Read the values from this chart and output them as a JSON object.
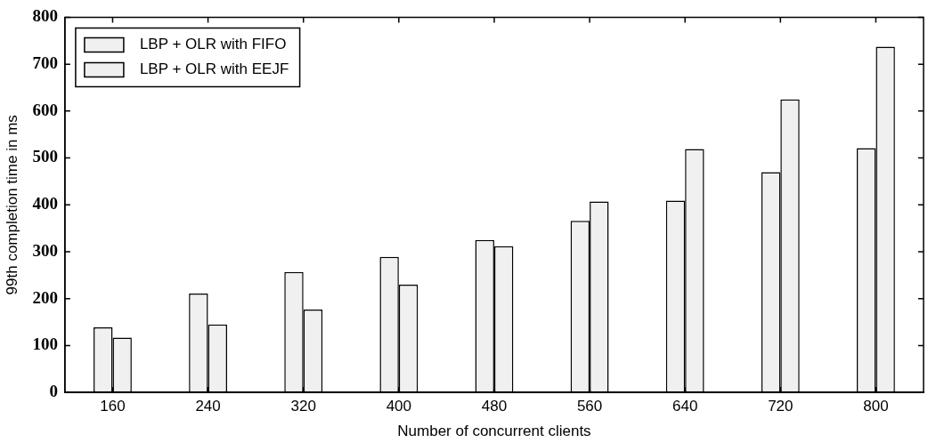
{
  "chart_data": {
    "type": "bar",
    "xlabel": "Number of concurrent clients",
    "ylabel": "99th completion time in ms",
    "categories": [
      "160",
      "240",
      "320",
      "400",
      "480",
      "560",
      "640",
      "720",
      "800"
    ],
    "series": [
      {
        "name": "LBP + OLR with FIFO",
        "color": "#f0f0f0",
        "values": [
          139,
          211,
          257,
          289,
          325,
          366,
          409,
          470,
          521
        ]
      },
      {
        "name": "LBP + OLR with EEJF",
        "color": "#f0f0f0",
        "values": [
          117,
          145,
          177,
          230,
          312,
          407,
          519,
          625,
          737
        ]
      }
    ],
    "ylim": [
      0,
      800
    ],
    "yticks": [
      0,
      100,
      200,
      300,
      400,
      500,
      600,
      700,
      800
    ],
    "grid": false,
    "legend": "top left"
  }
}
